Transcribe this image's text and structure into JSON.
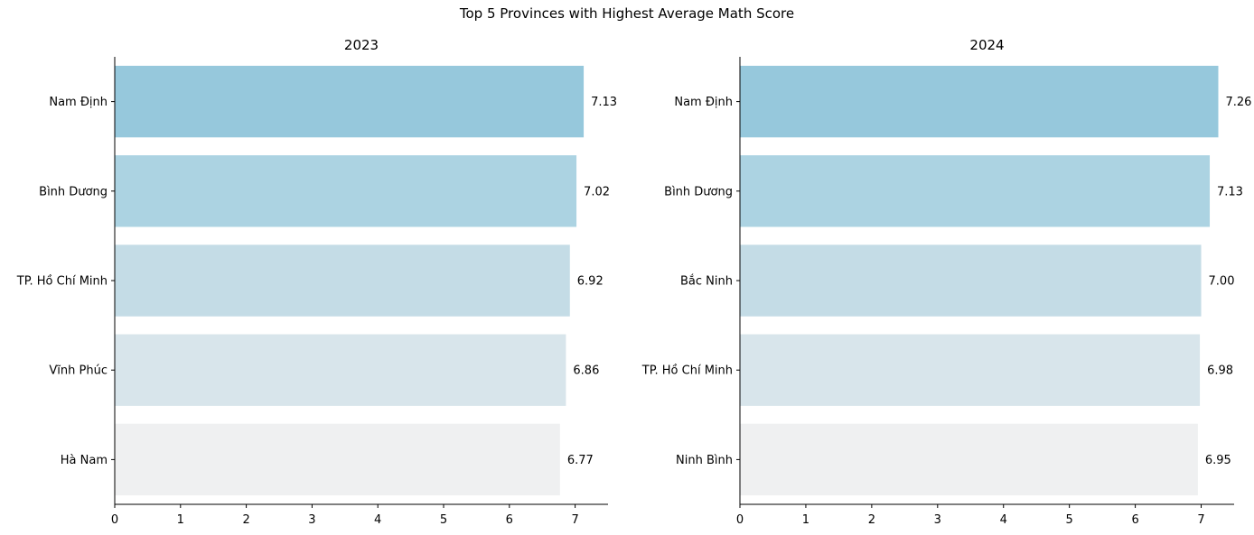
{
  "suptitle": "Top 5 Provinces with Highest Average Math Score",
  "chart_data": [
    {
      "type": "bar",
      "orientation": "horizontal",
      "title": "2023",
      "xlabel": "",
      "ylabel": "",
      "xlim": [
        0,
        7.5
      ],
      "xticks": [
        0,
        1,
        2,
        3,
        4,
        5,
        6,
        7
      ],
      "categories": [
        "Nam Định",
        "Bình Dương",
        "TP. Hồ Chí Minh",
        "Vĩnh Phúc",
        "Hà Nam"
      ],
      "values": [
        7.13,
        7.02,
        6.92,
        6.86,
        6.77
      ],
      "value_labels": [
        "7.13",
        "7.02",
        "6.92",
        "6.86",
        "6.77"
      ],
      "colors": [
        "#96c8dc",
        "#acd3e2",
        "#c4dce6",
        "#d8e5eb",
        "#eff0f1"
      ],
      "grid": false
    },
    {
      "type": "bar",
      "orientation": "horizontal",
      "title": "2024",
      "xlabel": "",
      "ylabel": "",
      "xlim": [
        0,
        7.5
      ],
      "xticks": [
        0,
        1,
        2,
        3,
        4,
        5,
        6,
        7
      ],
      "categories": [
        "Nam Định",
        "Bình Dương",
        "Bắc Ninh",
        "TP. Hồ Chí Minh",
        "Ninh Bình"
      ],
      "values": [
        7.26,
        7.13,
        7.0,
        6.98,
        6.95
      ],
      "value_labels": [
        "7.26",
        "7.13",
        "7.00",
        "6.98",
        "6.95"
      ],
      "colors": [
        "#96c8dc",
        "#acd3e2",
        "#c4dce6",
        "#d8e5eb",
        "#eff0f1"
      ],
      "grid": false
    }
  ]
}
